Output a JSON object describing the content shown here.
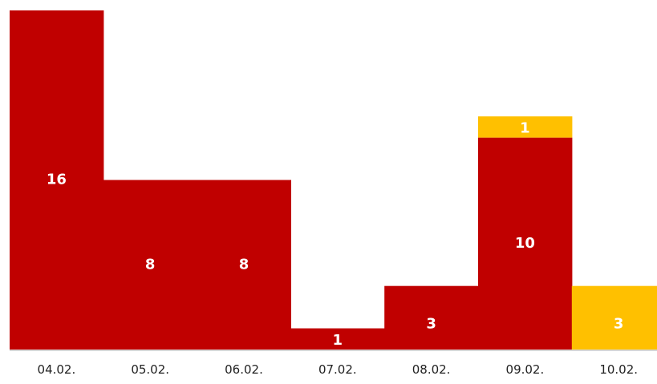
{
  "chart_data": {
    "type": "bar",
    "stacked": true,
    "categories": [
      "04.02.",
      "05.02.",
      "06.02.",
      "07.02.",
      "08.02.",
      "09.02.",
      "10.02."
    ],
    "series": [
      {
        "values": [
          16,
          8,
          8,
          1,
          3,
          10,
          0
        ],
        "color": "#c00000"
      },
      {
        "values": [
          0,
          0,
          0,
          0,
          0,
          1,
          3
        ],
        "color": "#ffc000"
      }
    ],
    "ylim": [
      0,
      16
    ],
    "grid": false,
    "legend": "none",
    "bar_gap": 0
  }
}
